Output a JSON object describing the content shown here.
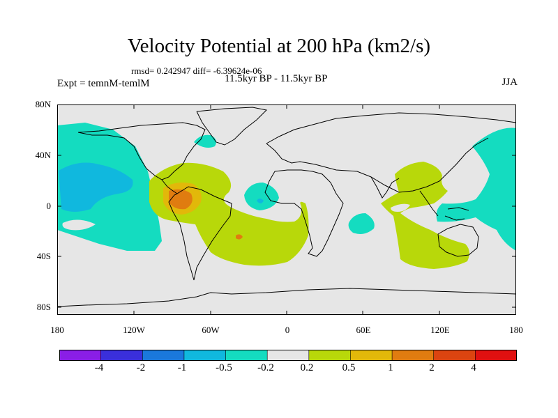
{
  "title": "Velocity Potential at 200 hPa (km2/s)",
  "stats": "rmsd= 0.242947  diff= -6.39624e-06",
  "experiment": "Expt = temnM-temlM",
  "period": "11.5kyr BP - 11.5kyr BP",
  "season": "JJA",
  "axes": {
    "lat_labels": [
      "80N",
      "40N",
      "0",
      "40S",
      "80S"
    ],
    "lon_labels": [
      "180",
      "120W",
      "60W",
      "0",
      "60E",
      "120E",
      "180"
    ]
  },
  "colorbar": {
    "labels": [
      "-4",
      "-2",
      "-1",
      "-0.5",
      "-0.2",
      "0.2",
      "0.5",
      "1",
      "2",
      "4"
    ],
    "colors": [
      "#8a1ee6",
      "#3a2fdb",
      "#1a78dc",
      "#10b8de",
      "#14dcc0",
      "#e6e6e6",
      "#b8d80a",
      "#e2b80a",
      "#e07c10",
      "#dc4410",
      "#e01010"
    ]
  },
  "colors": {
    "neutral": "#e6e6e6",
    "teal": "#14dcc0",
    "cyan": "#10b8de",
    "blue": "#1a78dc",
    "yellowgreen": "#b8d80a",
    "gold": "#e2b80a",
    "orange": "#e07c10"
  }
}
